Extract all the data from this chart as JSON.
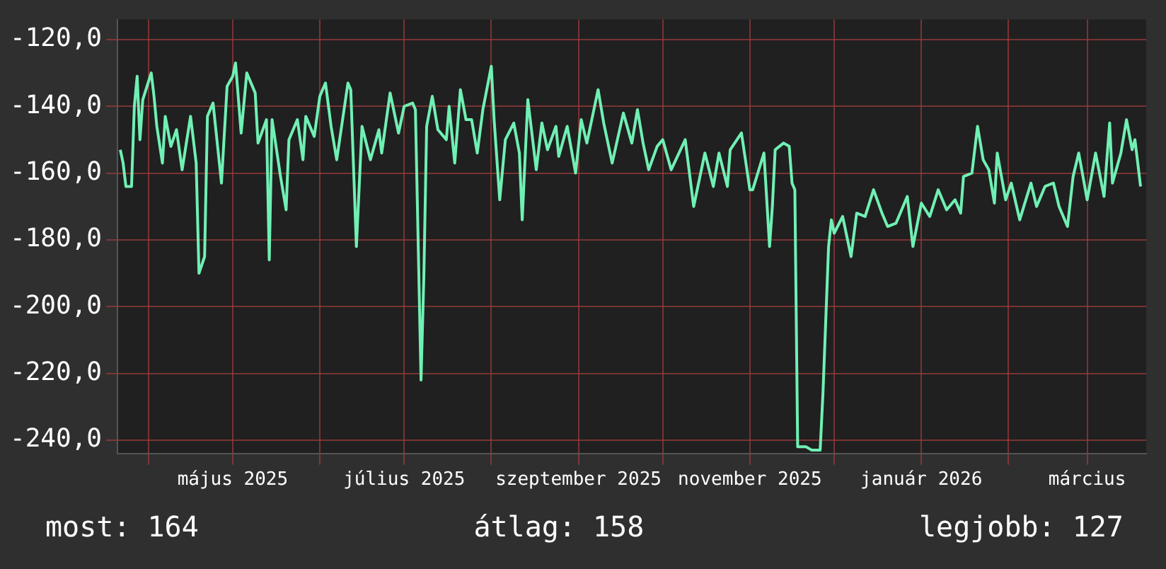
{
  "chart_data": {
    "type": "line",
    "x": [
      "2025-03-22",
      "2025-03-23",
      "2025-03-24",
      "2025-03-26",
      "2025-03-27",
      "2025-03-28",
      "2025-03-29",
      "2025-03-30",
      "2025-04-02",
      "2025-04-03",
      "2025-04-04",
      "2025-04-06",
      "2025-04-07",
      "2025-04-09",
      "2025-04-11",
      "2025-04-13",
      "2025-04-16",
      "2025-04-18",
      "2025-04-19",
      "2025-04-21",
      "2025-04-22",
      "2025-04-24",
      "2025-04-27",
      "2025-04-29",
      "2025-05-01",
      "2025-05-02",
      "2025-05-04",
      "2025-05-06",
      "2025-05-09",
      "2025-05-10",
      "2025-05-13",
      "2025-05-14",
      "2025-05-15",
      "2025-05-18",
      "2025-05-20",
      "2025-05-21",
      "2025-05-24",
      "2025-05-26",
      "2025-05-27",
      "2025-05-30",
      "2025-06-01",
      "2025-06-03",
      "2025-06-05",
      "2025-06-07",
      "2025-06-11",
      "2025-06-12",
      "2025-06-14",
      "2025-06-16",
      "2025-06-19",
      "2025-06-22",
      "2025-06-23",
      "2025-06-26",
      "2025-06-29",
      "2025-07-01",
      "2025-07-04",
      "2025-07-05",
      "2025-07-07",
      "2025-07-08",
      "2025-07-09",
      "2025-07-11",
      "2025-07-13",
      "2025-07-16",
      "2025-07-17",
      "2025-07-19",
      "2025-07-21",
      "2025-07-23",
      "2025-07-25",
      "2025-07-27",
      "2025-07-29",
      "2025-08-01",
      "2025-08-02",
      "2025-08-04",
      "2025-08-06",
      "2025-08-09",
      "2025-08-11",
      "2025-08-12",
      "2025-08-14",
      "2025-08-17",
      "2025-08-19",
      "2025-08-21",
      "2025-08-24",
      "2025-08-25",
      "2025-08-28",
      "2025-08-31",
      "2025-09-02",
      "2025-09-04",
      "2025-09-08",
      "2025-09-10",
      "2025-09-13",
      "2025-09-17",
      "2025-09-20",
      "2025-09-22",
      "2025-09-24",
      "2025-09-26",
      "2025-09-29",
      "2025-10-01",
      "2025-10-04",
      "2025-10-09",
      "2025-10-12",
      "2025-10-14",
      "2025-10-16",
      "2025-10-19",
      "2025-10-21",
      "2025-10-24",
      "2025-10-25",
      "2025-10-29",
      "2025-11-01",
      "2025-11-02",
      "2025-11-06",
      "2025-11-08",
      "2025-11-09",
      "2025-11-10",
      "2025-11-13",
      "2025-11-15",
      "2025-11-16",
      "2025-11-17",
      "2025-11-18",
      "2025-11-21",
      "2025-11-23",
      "2025-11-26",
      "2025-11-27",
      "2025-11-29",
      "2025-11-30",
      "2025-12-01",
      "2025-12-04",
      "2025-12-07",
      "2025-12-09",
      "2025-12-12",
      "2025-12-15",
      "2025-12-18",
      "2025-12-20",
      "2025-12-23",
      "2025-12-27",
      "2025-12-29",
      "2026-01-01",
      "2026-01-04",
      "2026-01-07",
      "2026-01-10",
      "2026-01-13",
      "2026-01-15",
      "2026-01-16",
      "2026-01-19",
      "2026-01-21",
      "2026-01-23",
      "2026-01-25",
      "2026-01-27",
      "2026-01-28",
      "2026-01-31",
      "2026-02-02",
      "2026-02-05",
      "2026-02-09",
      "2026-02-11",
      "2026-02-14",
      "2026-02-17",
      "2026-02-19",
      "2026-02-22",
      "2026-02-24",
      "2026-02-26",
      "2026-03-01",
      "2026-03-04",
      "2026-03-07",
      "2026-03-09",
      "2026-03-10",
      "2026-03-13",
      "2026-03-15",
      "2026-03-17",
      "2026-03-18",
      "2026-03-20"
    ],
    "series": [
      {
        "color": "#70f0b4",
        "values": [
          -153,
          -157,
          -164,
          -164,
          -140,
          -131,
          -150,
          -138,
          -130,
          -137,
          -146,
          -157,
          -143,
          -152,
          -147,
          -159,
          -143,
          -157,
          -190,
          -185,
          -143,
          -139,
          -163,
          -134,
          -131,
          -127,
          -148,
          -130,
          -136,
          -151,
          -144,
          -186,
          -144,
          -161,
          -171,
          -150,
          -144,
          -156,
          -143,
          -149,
          -137,
          -133,
          -146,
          -156,
          -133,
          -135,
          -182,
          -146,
          -156,
          -147,
          -154,
          -136,
          -148,
          -140,
          -139,
          -141,
          -222,
          -191,
          -146,
          -137,
          -147,
          -150,
          -140,
          -157,
          -135,
          -144,
          -144,
          -154,
          -141,
          -128,
          -144,
          -168,
          -150,
          -145,
          -154,
          -174,
          -138,
          -159,
          -145,
          -153,
          -146,
          -155,
          -146,
          -160,
          -144,
          -151,
          -135,
          -145,
          -157,
          -142,
          -151,
          -141,
          -151,
          -159,
          -152,
          -150,
          -159,
          -150,
          -170,
          -162,
          -154,
          -164,
          -154,
          -164,
          -153,
          -148,
          -165,
          -165,
          -154,
          -182,
          -170,
          -153,
          -151,
          -152,
          -163,
          -165,
          -242,
          -242,
          -243,
          -243,
          -226,
          -182,
          -174,
          -178,
          -173,
          -185,
          -172,
          -173,
          -165,
          -172,
          -176,
          -175,
          -167,
          -182,
          -169,
          -173,
          -165,
          -171,
          -168,
          -172,
          -161,
          -160,
          -146,
          -156,
          -159,
          -169,
          -154,
          -168,
          -163,
          -174,
          -163,
          -170,
          -164,
          -163,
          -170,
          -176,
          -161,
          -154,
          -168,
          -154,
          -167,
          -145,
          -163,
          -154,
          -144,
          -153,
          -150,
          -164
        ]
      }
    ],
    "xlim": [
      "2025-03-21",
      "2026-03-22"
    ],
    "xticks": [
      {
        "value": "2025-04-01",
        "label": null
      },
      {
        "value": "2025-05-01",
        "label": "május 2025"
      },
      {
        "value": "2025-06-01",
        "label": null
      },
      {
        "value": "2025-07-01",
        "label": "július 2025"
      },
      {
        "value": "2025-08-01",
        "label": null
      },
      {
        "value": "2025-09-01",
        "label": "szeptember 2025"
      },
      {
        "value": "2025-10-01",
        "label": null
      },
      {
        "value": "2025-11-01",
        "label": "november 2025"
      },
      {
        "value": "2025-12-01",
        "label": null
      },
      {
        "value": "2026-01-01",
        "label": "január 2026"
      },
      {
        "value": "2026-02-01",
        "label": null
      },
      {
        "value": "2026-03-01",
        "label": "március"
      }
    ],
    "ylim": [
      -244,
      -114
    ],
    "yticks": [
      {
        "value": -120,
        "label": "-120,0"
      },
      {
        "value": -140,
        "label": "-140,0"
      },
      {
        "value": -160,
        "label": "-160,0"
      },
      {
        "value": -180,
        "label": "-180,0"
      },
      {
        "value": -200,
        "label": "-200,0"
      },
      {
        "value": -220,
        "label": "-220,0"
      },
      {
        "value": -240,
        "label": "-240,0"
      }
    ],
    "grid": true,
    "annotations": [
      "most: 164",
      "átlag: 158",
      "legjobb: 127"
    ]
  }
}
